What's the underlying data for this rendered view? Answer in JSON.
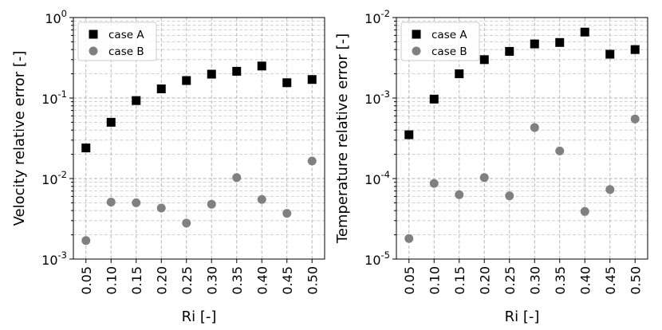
{
  "chart_data": [
    {
      "type": "scatter",
      "xlabel": "Ri [-]",
      "ylabel": "Velocity relative error [-]",
      "yscale": "log",
      "ylim": [
        0.001,
        1
      ],
      "y_tick_labels": [
        {
          "base": "10",
          "exp": "-3"
        },
        {
          "base": "10",
          "exp": "-2"
        },
        {
          "base": "10",
          "exp": "-1"
        },
        {
          "base": "10",
          "exp": "0"
        }
      ],
      "grid": true,
      "legend": "top-left",
      "categories": [
        "0.05",
        "0.10",
        "0.15",
        "0.20",
        "0.25",
        "0.30",
        "0.35",
        "0.40",
        "0.45",
        "0.50"
      ],
      "series": [
        {
          "name": "case A",
          "marker": "square",
          "color": "#000000",
          "values": [
            0.024,
            0.05,
            0.093,
            0.13,
            0.165,
            0.198,
            0.215,
            0.25,
            0.155,
            0.17
          ]
        },
        {
          "name": "case B",
          "marker": "circle",
          "color": "#808080",
          "values": [
            0.0017,
            0.0051,
            0.005,
            0.0043,
            0.0028,
            0.0048,
            0.0103,
            0.0055,
            0.0037,
            0.0165
          ]
        }
      ]
    },
    {
      "type": "scatter",
      "xlabel": "Ri [-]",
      "ylabel": "Temperature relative error [-]",
      "yscale": "log",
      "ylim": [
        1e-05,
        0.01
      ],
      "y_tick_labels": [
        {
          "base": "10",
          "exp": "-5"
        },
        {
          "base": "10",
          "exp": "-4"
        },
        {
          "base": "10",
          "exp": "-3"
        },
        {
          "base": "10",
          "exp": "-2"
        }
      ],
      "grid": true,
      "legend": "top-left",
      "categories": [
        "0.05",
        "0.10",
        "0.15",
        "0.20",
        "0.25",
        "0.30",
        "0.35",
        "0.40",
        "0.45",
        "0.50"
      ],
      "series": [
        {
          "name": "case A",
          "marker": "square",
          "color": "#000000",
          "values": [
            0.00035,
            0.00097,
            0.002,
            0.003,
            0.0038,
            0.0047,
            0.0049,
            0.0066,
            0.0035,
            0.004
          ]
        },
        {
          "name": "case B",
          "marker": "circle",
          "color": "#808080",
          "values": [
            1.8e-05,
            8.7e-05,
            6.3e-05,
            0.000103,
            6.1e-05,
            0.00043,
            0.00022,
            3.9e-05,
            7.3e-05,
            0.00055
          ]
        }
      ]
    }
  ]
}
